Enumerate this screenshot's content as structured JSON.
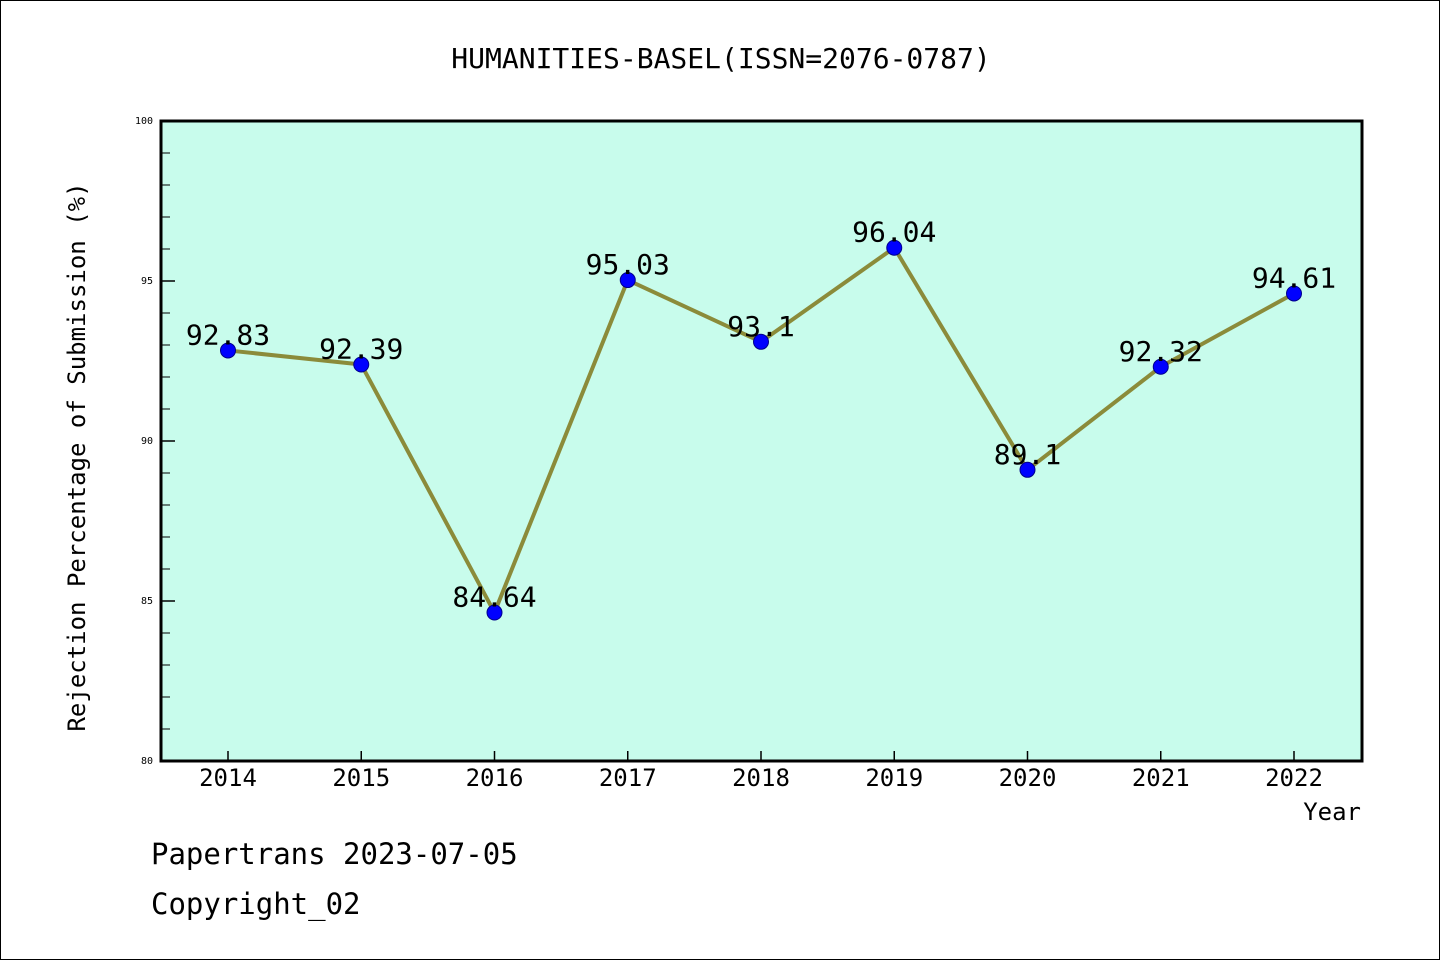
{
  "chart_data": {
    "type": "line",
    "title": "HUMANITIES-BASEL(ISSN=2076-0787)",
    "xlabel": "Year",
    "ylabel": "Rejection Percentage of Submission (%)",
    "categories": [
      "2014",
      "2015",
      "2016",
      "2017",
      "2018",
      "2019",
      "2020",
      "2021",
      "2022"
    ],
    "series": [
      {
        "values": [
          92.83,
          92.39,
          84.64,
          95.03,
          93.1,
          96.04,
          89.1,
          92.32,
          94.61
        ],
        "data_labels": [
          "92.83",
          "92.39",
          "84.64",
          "95.03",
          "93.1",
          "96.04",
          "89.1",
          "92.32",
          "94.61"
        ]
      }
    ],
    "ylim": [
      80,
      100
    ],
    "yticks": [
      "80",
      "85",
      "90",
      "95",
      "100"
    ],
    "grid": false,
    "colors": {
      "plot_background": "#c8fcec",
      "line": "#8b8b3a",
      "marker": "#0000ff"
    }
  },
  "footer": {
    "line1": "Papertrans 2023-07-05",
    "line2": "Copyright_02"
  }
}
